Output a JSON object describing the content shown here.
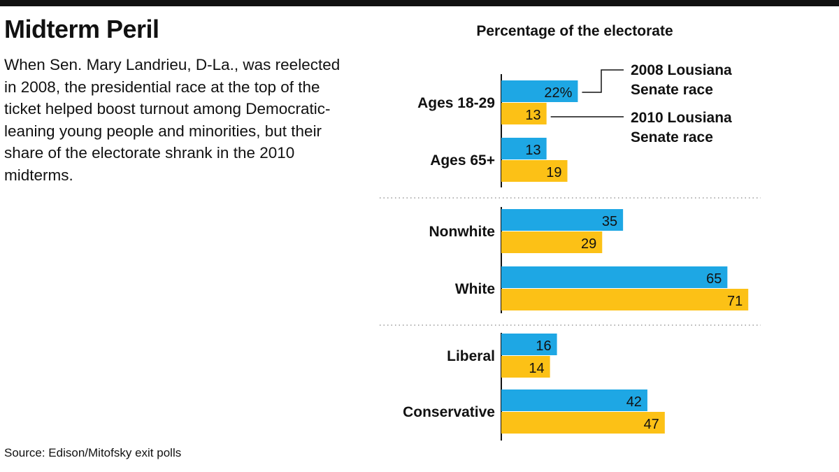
{
  "header": {
    "title": "Midterm Peril",
    "intro": "When Sen. Mary Landrieu, D-La., was reelected in 2008, the presidential race at the top of the ticket helped boost turnout among Democratic-leaning young people and minorities, but their share of the electorate shrank in the 2010 midterms."
  },
  "footer": {
    "source": "Source: Edison/Mitofsky exit polls"
  },
  "chart_data": {
    "type": "bar",
    "orientation": "horizontal",
    "title": "Percentage of the electorate",
    "xlabel": "",
    "ylabel": "",
    "xlim": [
      0,
      71
    ],
    "grid": false,
    "legend_placement": "right of first group, with leader lines",
    "categories": [
      "Ages 18-29",
      "Ages 65+",
      "Nonwhite",
      "White",
      "Liberal",
      "Conservative"
    ],
    "groups": [
      [
        "Ages 18-29",
        "Ages 65+"
      ],
      [
        "Nonwhite",
        "White"
      ],
      [
        "Liberal",
        "Conservative"
      ]
    ],
    "value_suffix_first": "%",
    "series": [
      {
        "name": "2008 Lousiana Senate race",
        "legend_lines": [
          "2008 Lousiana",
          "Senate race"
        ],
        "color": "#1ea7e4",
        "values": [
          22,
          13,
          35,
          65,
          16,
          42
        ]
      },
      {
        "name": "2010 Lousiana Senate race",
        "legend_lines": [
          "2010 Lousiana",
          "Senate race"
        ],
        "color": "#fcc116",
        "values": [
          13,
          19,
          29,
          71,
          14,
          47
        ]
      }
    ]
  }
}
